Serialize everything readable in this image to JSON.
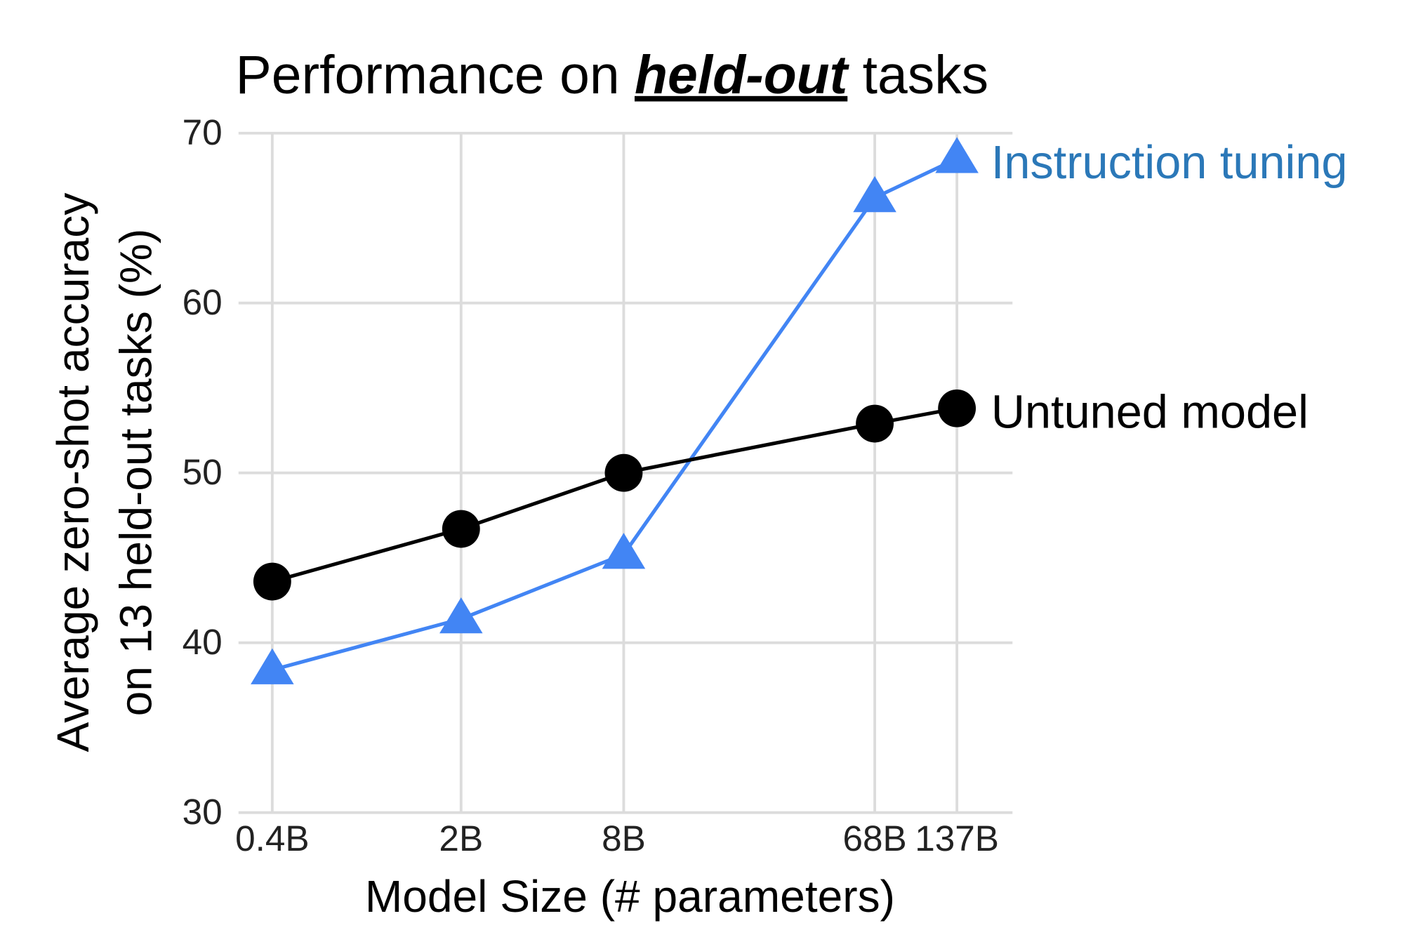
{
  "chart_data": {
    "type": "line",
    "title": [
      "Performance on ",
      "held-out",
      " tasks"
    ],
    "x_label": "Model Size (# parameters)",
    "y_label": [
      "Average zero-shot accuracy",
      "on 13 held-out tasks (%)"
    ],
    "x": [
      0.4,
      2,
      8,
      68,
      137
    ],
    "x_scale": "log",
    "xlim": [
      0.3,
      220
    ],
    "xticks": [
      {
        "value": 0.4,
        "label": "0.4B"
      },
      {
        "value": 2,
        "label": "2B"
      },
      {
        "value": 8,
        "label": "8B"
      },
      {
        "value": 68,
        "label": "68B"
      },
      {
        "value": 137,
        "label": "137B"
      }
    ],
    "ylim": [
      30,
      70
    ],
    "yticks": [
      30,
      40,
      50,
      60,
      70
    ],
    "grid": true,
    "series": [
      {
        "name": "Instruction tuning",
        "color": "#4285f4",
        "label_color": "#2b78b8",
        "marker": "triangle",
        "values": [
          38.4,
          41.4,
          45.2,
          66.2,
          68.5
        ]
      },
      {
        "name": "Untuned model",
        "color": "#000000",
        "label_color": "#000000",
        "marker": "circle",
        "values": [
          43.6,
          46.7,
          50.0,
          52.9,
          53.8
        ]
      }
    ]
  }
}
